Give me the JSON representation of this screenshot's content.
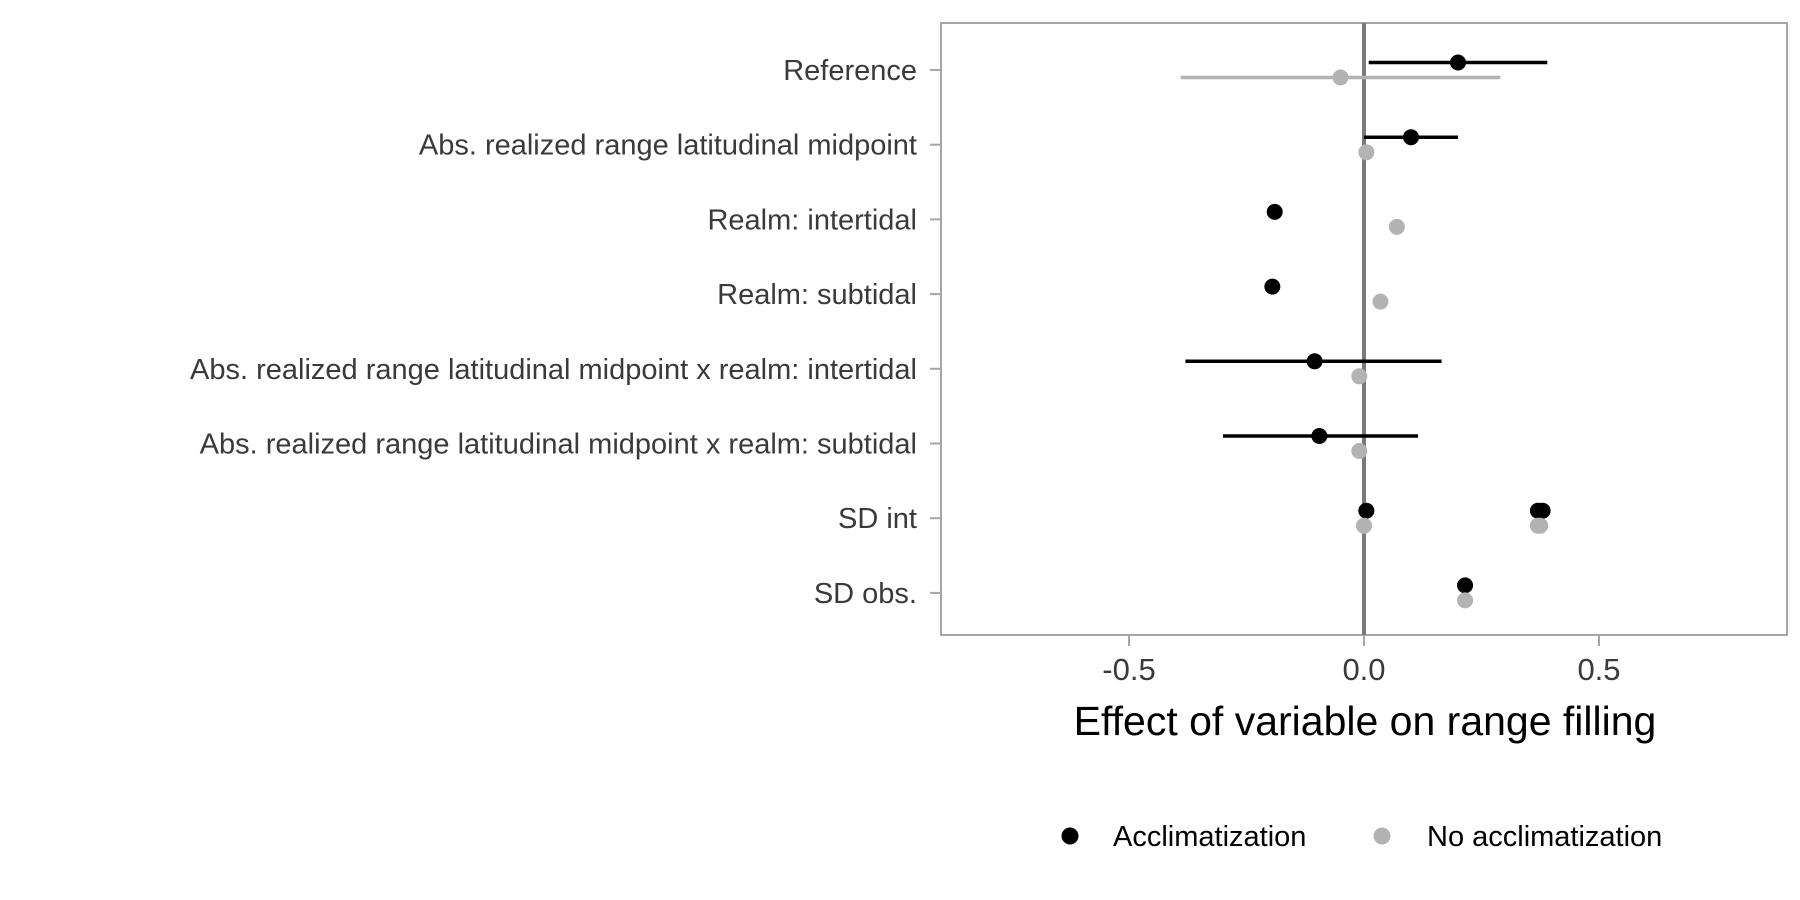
{
  "chart_data": {
    "type": "scatter",
    "title": "",
    "xlabel": "Effect of variable on range filling",
    "ylabel": "",
    "xlim": [
      -0.9,
      0.9
    ],
    "x_ticks": [
      -0.5,
      0.0,
      0.5
    ],
    "x_tick_labels": [
      "-0.5",
      "0.0",
      "0.5"
    ],
    "reference_line_x": 0,
    "grid": false,
    "legend_position": "bottom",
    "categories": [
      "Reference",
      "Abs. realized range latitudinal midpoint",
      "Realm: intertidal",
      "Realm: subtidal",
      "Abs. realized range latitudinal midpoint x realm: intertidal",
      "Abs. realized range latitudinal midpoint x realm: subtidal",
      "SD int",
      "SD obs."
    ],
    "series": [
      {
        "name": "Acclimatization",
        "color": "#000000",
        "points": [
          {
            "category": "Reference",
            "x": 0.2,
            "lo": 0.01,
            "hi": 0.39
          },
          {
            "category": "Abs. realized range latitudinal midpoint",
            "x": 0.1,
            "lo": 0.0,
            "hi": 0.2
          },
          {
            "category": "Realm: intertidal",
            "x": -0.19
          },
          {
            "category": "Realm: subtidal",
            "x": -0.195
          },
          {
            "category": "Abs. realized range latitudinal midpoint x realm: intertidal",
            "x": -0.105,
            "lo": -0.38,
            "hi": 0.165
          },
          {
            "category": "Abs. realized range latitudinal midpoint x realm: subtidal",
            "x": -0.095,
            "lo": -0.3,
            "hi": 0.115
          },
          {
            "category": "SD int",
            "x": 0.005
          },
          {
            "category": "SD int",
            "x": 0.37
          },
          {
            "category": "SD int",
            "x": 0.38
          },
          {
            "category": "SD obs.",
            "x": 0.215
          }
        ]
      },
      {
        "name": "No acclimatization",
        "color": "#b3b3b3",
        "points": [
          {
            "category": "Reference",
            "x": -0.05,
            "lo": -0.39,
            "hi": 0.29
          },
          {
            "category": "Abs. realized range latitudinal midpoint",
            "x": 0.005
          },
          {
            "category": "Realm: intertidal",
            "x": 0.07
          },
          {
            "category": "Realm: subtidal",
            "x": 0.035
          },
          {
            "category": "Abs. realized range latitudinal midpoint x realm: intertidal",
            "x": -0.01
          },
          {
            "category": "Abs. realized range latitudinal midpoint x realm: subtidal",
            "x": -0.01
          },
          {
            "category": "SD int",
            "x": 0.0
          },
          {
            "category": "SD int",
            "x": 0.37
          },
          {
            "category": "SD int",
            "x": 0.375
          },
          {
            "category": "SD obs.",
            "x": 0.215
          }
        ]
      }
    ]
  }
}
